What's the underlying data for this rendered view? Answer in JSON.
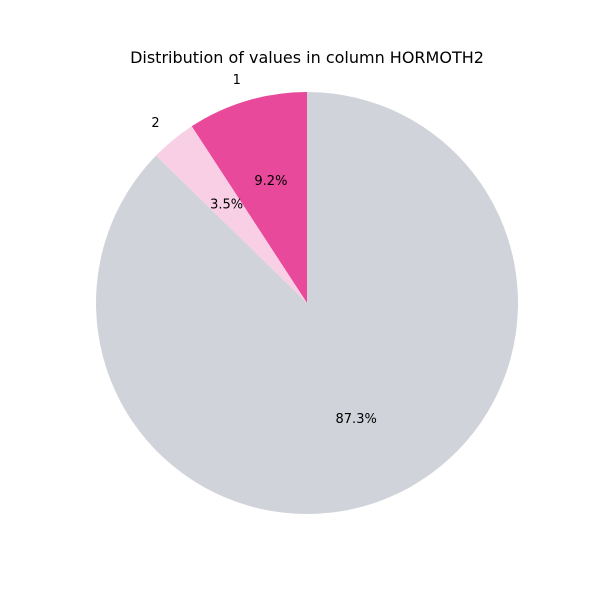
{
  "chart_data": {
    "type": "pie",
    "title": "Distribution of values in column HORMOTH2",
    "categories": [
      "1",
      "2",
      ""
    ],
    "values": [
      9.2,
      3.5,
      87.3
    ],
    "labels_shown": [
      "1",
      "2",
      ""
    ],
    "percent_labels": [
      "9.2%",
      "3.5%",
      "87.3%"
    ],
    "colors": [
      "#e9499b",
      "#f9cfe6",
      "#d0d3da"
    ],
    "start_angle_deg": 90,
    "direction": "counterclockwise",
    "legend": "none"
  }
}
